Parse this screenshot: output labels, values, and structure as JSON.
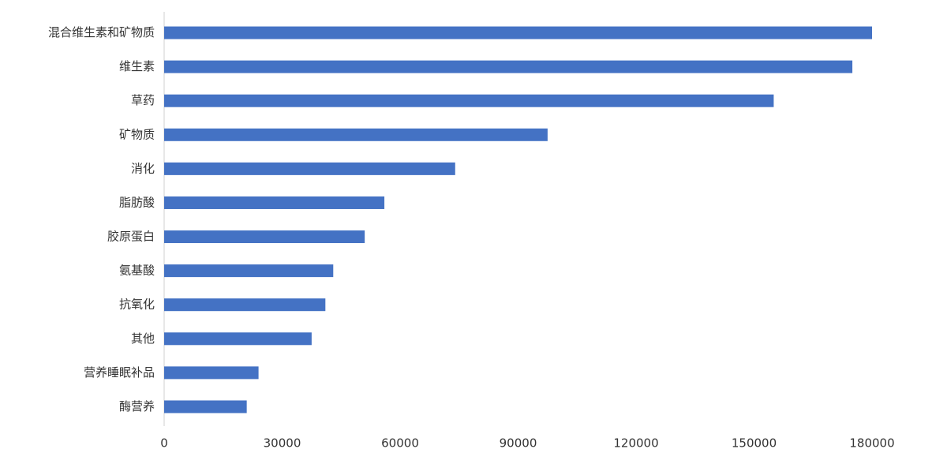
{
  "chart_data": {
    "type": "hbar",
    "categories": [
      "混合维生素和矿物质",
      "维生素",
      "草药",
      "矿物质",
      "消化",
      "脂肪酸",
      "胶原蛋白",
      "氨基酸",
      "抗氧化",
      "其他",
      "营养睡眠补品",
      "酶营养"
    ],
    "values": [
      180000,
      175000,
      155000,
      97500,
      74000,
      56000,
      51000,
      43000,
      41000,
      37500,
      24000,
      21000
    ],
    "color": "#4472c4",
    "xlim": [
      0,
      180000
    ],
    "xticks": [
      0,
      30000,
      60000,
      90000,
      120000,
      150000,
      180000
    ],
    "grid": false
  }
}
